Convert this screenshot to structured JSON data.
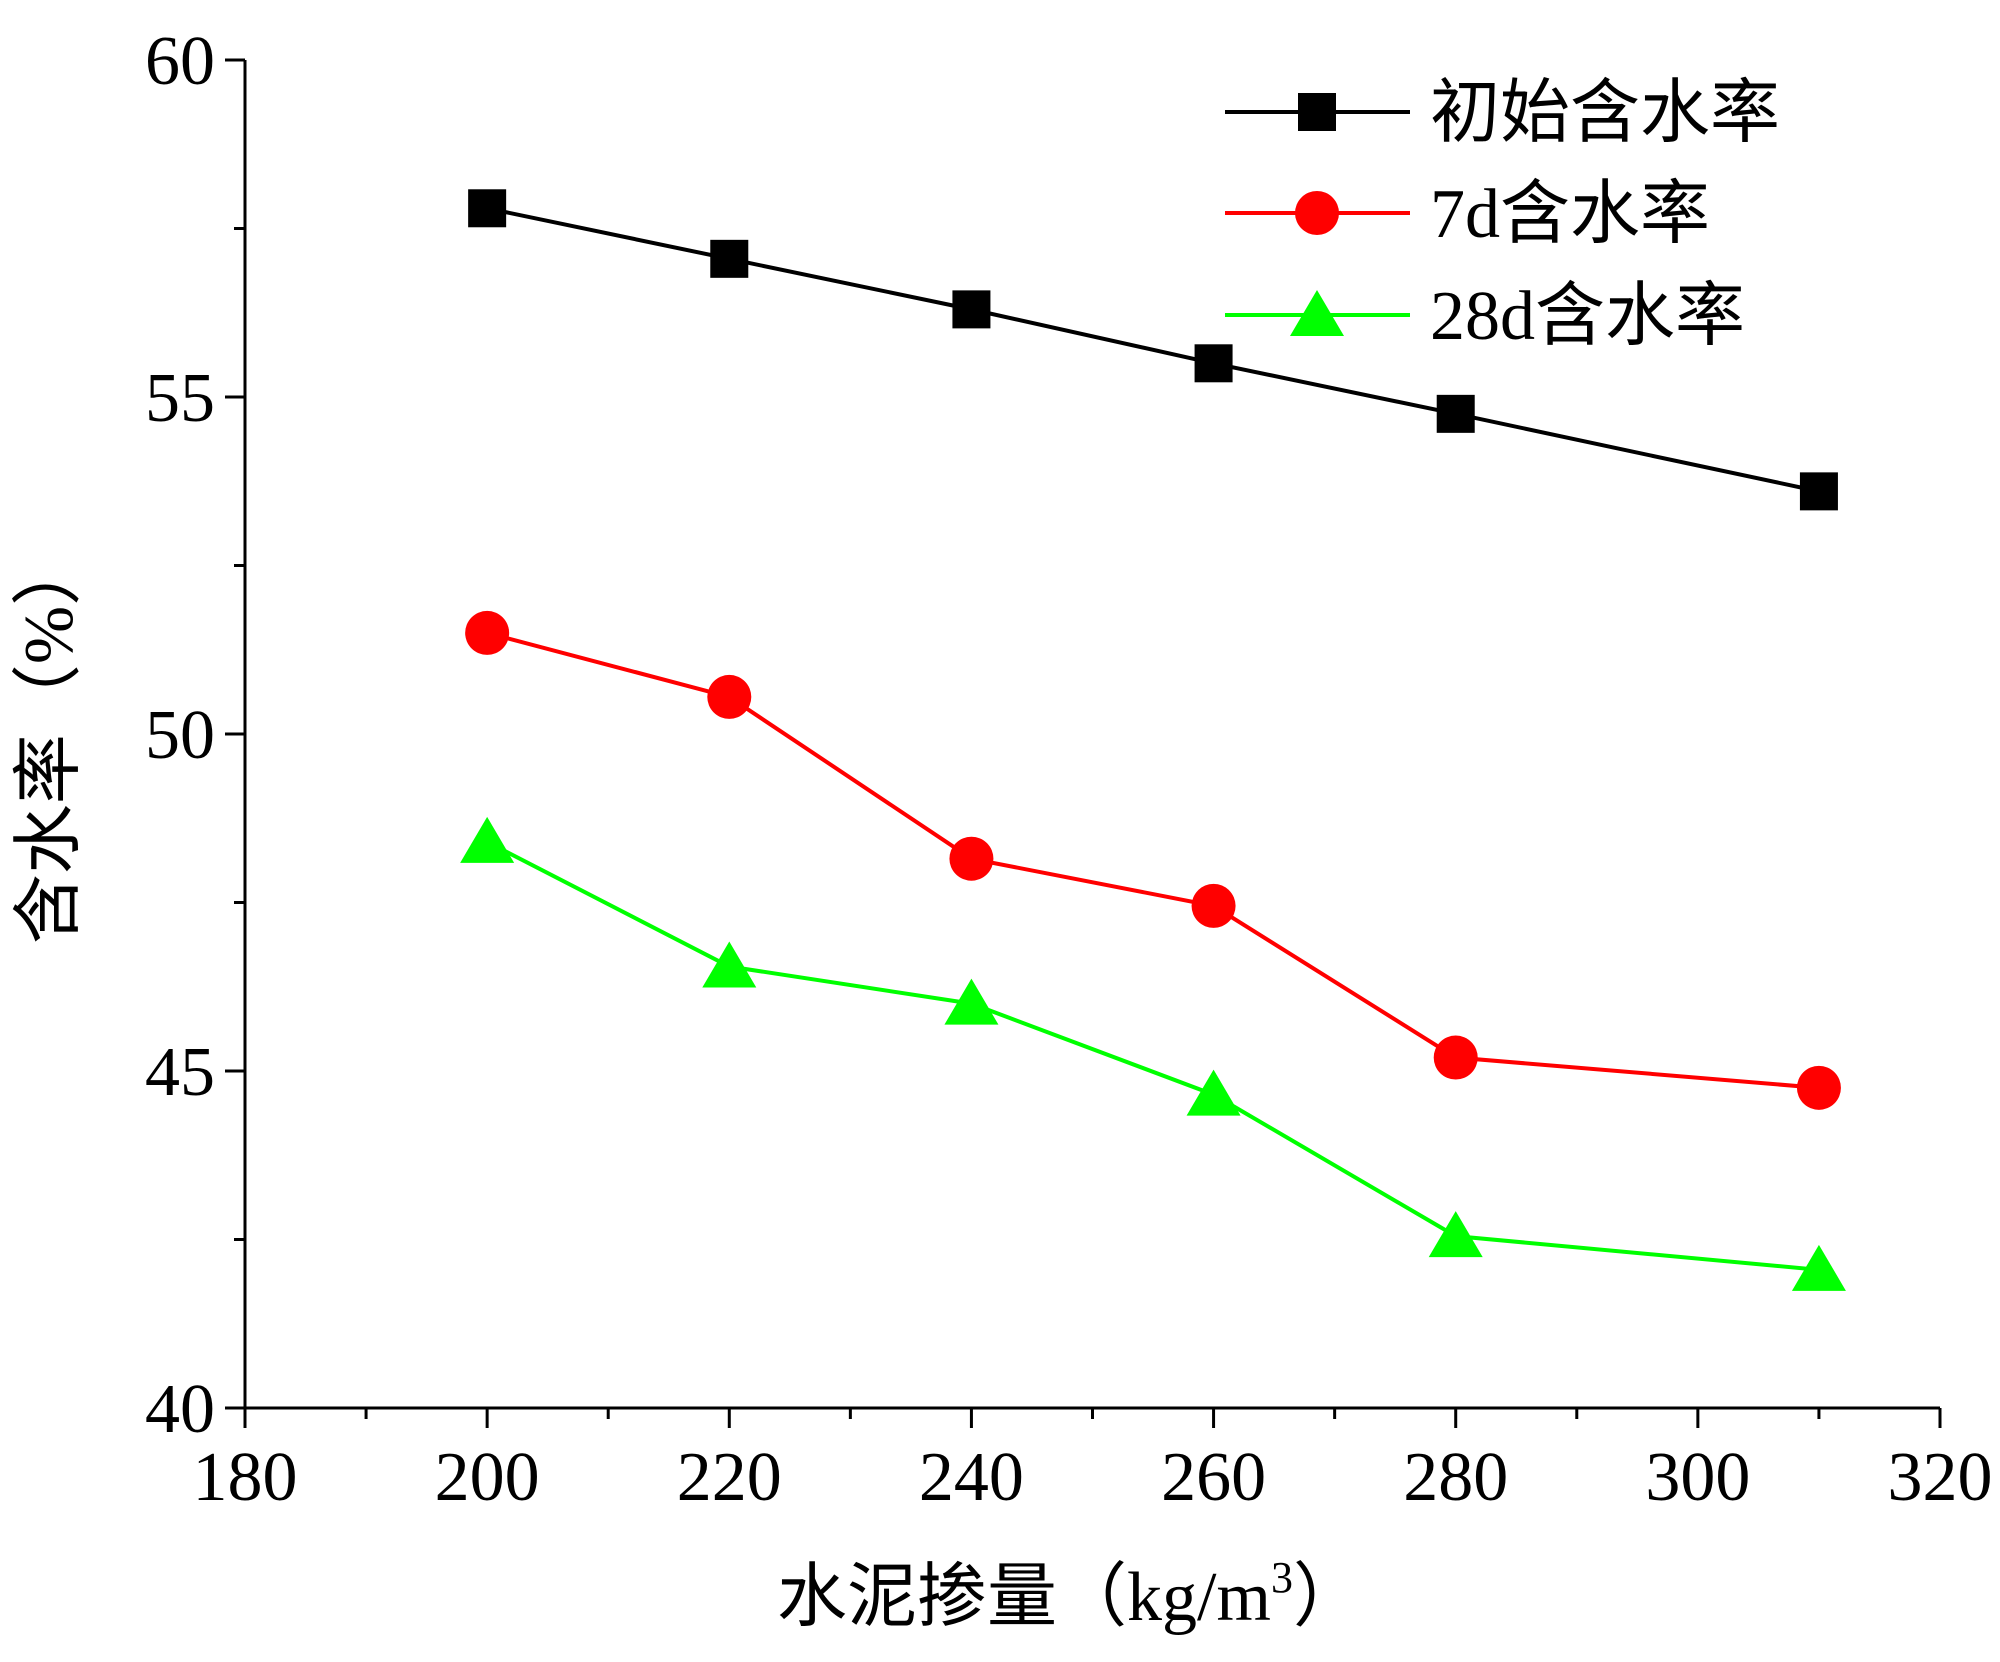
{
  "chart_data": {
    "type": "line",
    "xlabel": "水泥掺量（kg/m",
    "xlabel_sup": "3",
    "xlabel_close": "）",
    "ylabel": "含水率（%）",
    "xlim": [
      180,
      320
    ],
    "ylim": [
      40,
      60
    ],
    "x_ticks": [
      180,
      200,
      220,
      240,
      260,
      280,
      300,
      320
    ],
    "y_ticks": [
      40,
      45,
      50,
      55,
      60
    ],
    "x_minor_step": 10,
    "y_minor_step": 2.5,
    "legend_position": "top-right",
    "x": [
      200,
      220,
      240,
      260,
      280,
      310
    ],
    "series": [
      {
        "name": "初始含水率",
        "color": "#000000",
        "marker": "square",
        "values": [
          57.8,
          57.05,
          56.3,
          55.5,
          54.75,
          53.6
        ]
      },
      {
        "name": "7d含水率",
        "color": "#ff0000",
        "marker": "circle",
        "values": [
          51.5,
          50.55,
          48.15,
          47.45,
          45.2,
          44.75
        ]
      },
      {
        "name": "28d含水率",
        "color": "#00ff00",
        "marker": "triangle",
        "values": [
          48.4,
          46.55,
          46.0,
          44.65,
          42.55,
          42.05
        ]
      }
    ]
  }
}
